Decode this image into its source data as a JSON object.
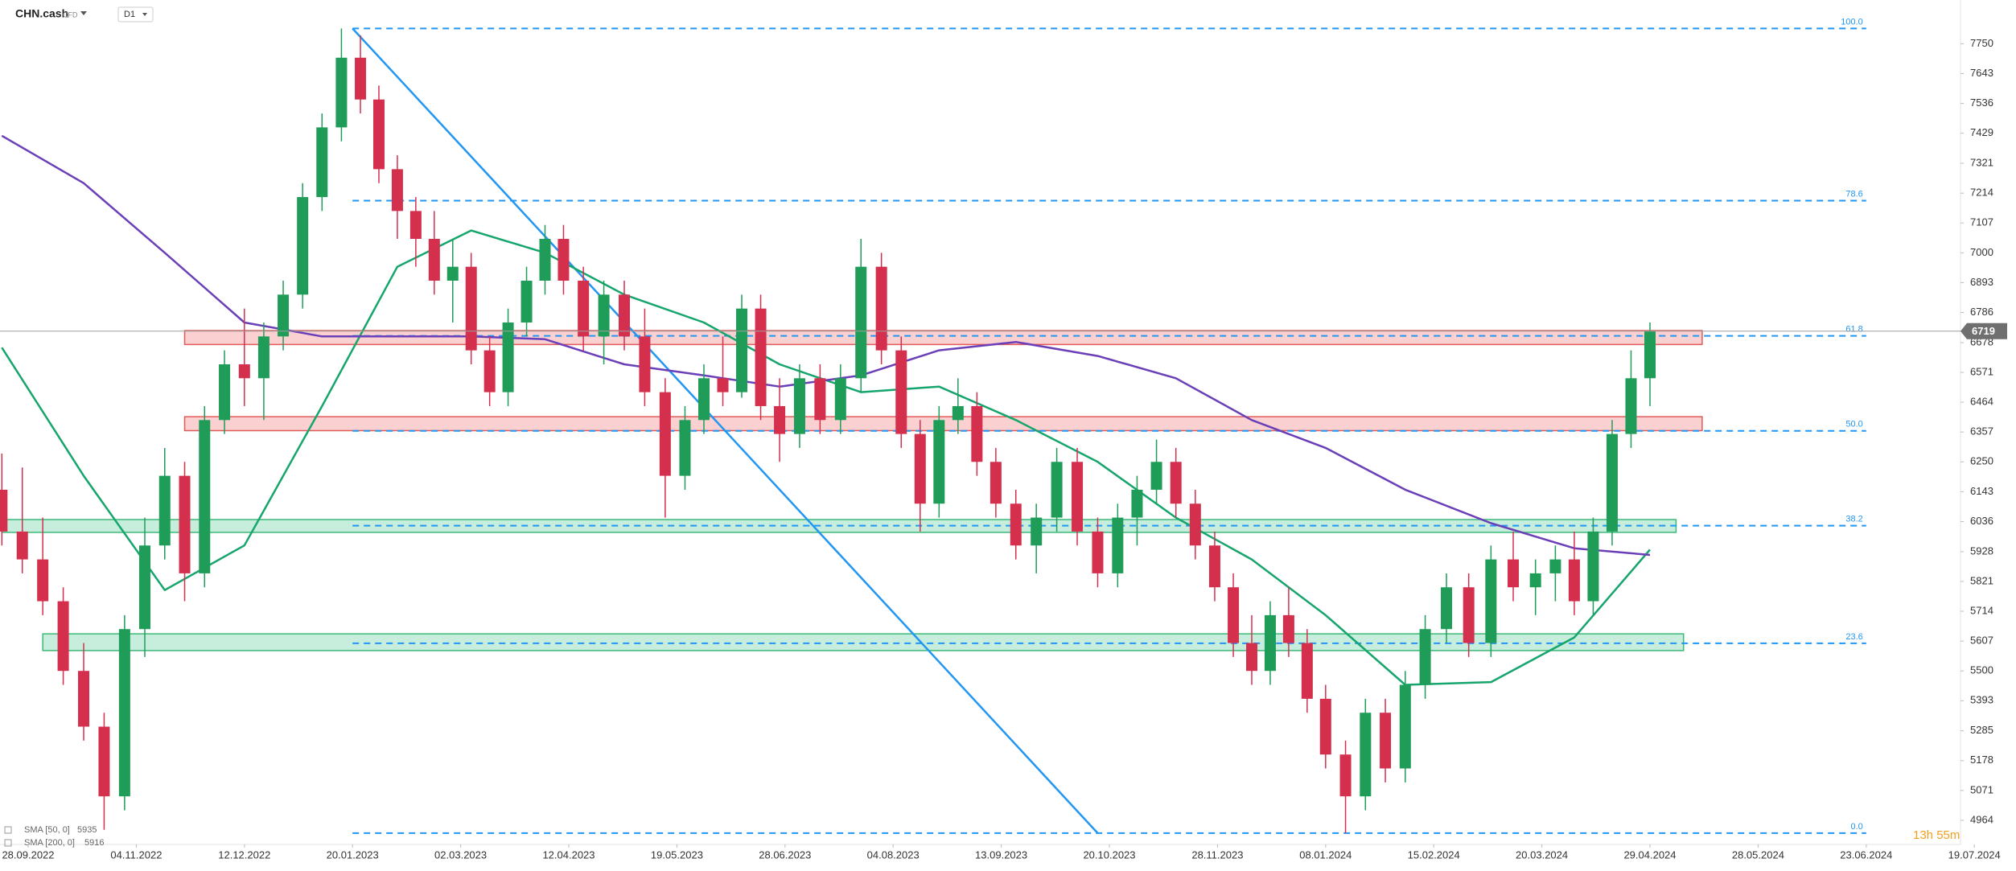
{
  "header": {
    "symbol": "CHN.cash",
    "instrument_type": "CFD",
    "timeframe": "D1"
  },
  "chart_data": {
    "type": "candlestick",
    "xticks": [
      "28.09.2022",
      "04.11.2022",
      "12.12.2022",
      "20.01.2023",
      "02.03.2023",
      "12.04.2023",
      "19.05.2023",
      "28.06.2023",
      "04.08.2023",
      "13.09.2023",
      "20.10.2023",
      "28.11.2023",
      "08.01.2024",
      "15.02.2024",
      "20.03.2024",
      "29.04.2024",
      "28.05.2024",
      "23.06.2024",
      "19.07.2024"
    ],
    "ylim": [
      4886,
      7907
    ],
    "yticks": [
      7750,
      7643,
      7536,
      7429,
      7321,
      7214,
      7107,
      7000,
      6893,
      6786,
      6678,
      6571,
      6464,
      6357,
      6250,
      6143,
      6036,
      5928,
      5821,
      5714,
      5607,
      5500,
      5393,
      5285,
      5178,
      5071,
      4964
    ],
    "grid": false,
    "candles": {
      "up_color": "#1f9d58",
      "down_color": "#d4304e",
      "x": [
        "19.09.2022",
        "26.09.2022",
        "03.10.2022",
        "10.10.2022",
        "17.10.2022",
        "24.10.2022",
        "31.10.2022",
        "07.11.2022",
        "14.11.2022",
        "21.11.2022",
        "28.11.2022",
        "05.12.2022",
        "12.12.2022",
        "19.12.2022",
        "26.12.2022",
        "02.01.2023",
        "09.01.2023",
        "16.01.2023",
        "23.01.2023",
        "30.01.2023",
        "06.02.2023",
        "13.02.2023",
        "20.02.2023",
        "27.02.2023",
        "06.03.2023",
        "13.03.2023",
        "20.03.2023",
        "27.03.2023",
        "03.04.2023",
        "10.04.2023",
        "17.04.2023",
        "24.04.2023",
        "01.05.2023",
        "08.05.2023",
        "15.05.2023",
        "22.05.2023",
        "29.05.2023",
        "05.06.2023",
        "12.06.2023",
        "19.06.2023",
        "26.06.2023",
        "03.07.2023",
        "10.07.2023",
        "17.07.2023",
        "24.07.2023",
        "31.07.2023",
        "07.08.2023",
        "14.08.2023",
        "21.08.2023",
        "28.08.2023",
        "04.09.2023",
        "11.09.2023",
        "18.09.2023",
        "25.09.2023",
        "02.10.2023",
        "09.10.2023",
        "16.10.2023",
        "23.10.2023",
        "30.10.2023",
        "06.11.2023",
        "13.11.2023",
        "20.11.2023",
        "27.11.2023",
        "04.12.2023",
        "11.12.2023",
        "18.12.2023",
        "25.12.2023",
        "01.01.2024",
        "08.01.2024",
        "15.01.2024",
        "22.01.2024",
        "29.01.2024",
        "05.02.2024",
        "12.02.2024",
        "19.02.2024",
        "26.02.2024",
        "04.03.2024",
        "11.03.2024",
        "18.03.2024",
        "25.03.2024",
        "01.04.2024",
        "08.04.2024",
        "15.04.2024",
        "22.04.2024",
        "29.04.2024"
      ],
      "open": [
        6150,
        6000,
        5900,
        5750,
        5500,
        5300,
        5050,
        5650,
        5950,
        6200,
        5850,
        6400,
        6600,
        6550,
        6700,
        6850,
        7200,
        7450,
        7700,
        7550,
        7300,
        7150,
        7050,
        6900,
        6950,
        6650,
        6500,
        6750,
        6900,
        7050,
        6900,
        6700,
        6850,
        6700,
        6500,
        6200,
        6400,
        6550,
        6500,
        6800,
        6450,
        6350,
        6550,
        6400,
        6550,
        6950,
        6650,
        6350,
        6100,
        6400,
        6450,
        6250,
        6100,
        5950,
        6050,
        6250,
        6000,
        5850,
        6050,
        6150,
        6250,
        6100,
        5950,
        5800,
        5600,
        5500,
        5700,
        5600,
        5400,
        5200,
        5050,
        5350,
        5150,
        5450,
        5650,
        5800,
        5600,
        5900,
        5800,
        5850,
        5900,
        5750,
        6000,
        6350,
        6550
      ],
      "high": [
        6280,
        6230,
        6050,
        5800,
        5600,
        5350,
        5700,
        6050,
        6300,
        6250,
        6450,
        6650,
        6800,
        6750,
        6900,
        7250,
        7500,
        7805,
        7780,
        7600,
        7350,
        7200,
        7150,
        7050,
        7000,
        6700,
        6800,
        6950,
        7100,
        7100,
        6950,
        6900,
        6900,
        6800,
        6550,
        6450,
        6600,
        6700,
        6850,
        6850,
        6550,
        6600,
        6600,
        6600,
        7050,
        7000,
        6700,
        6400,
        6450,
        6550,
        6500,
        6300,
        6150,
        6100,
        6300,
        6300,
        6050,
        6100,
        6200,
        6330,
        6300,
        6150,
        6000,
        5850,
        5700,
        5750,
        5800,
        5650,
        5450,
        5250,
        5400,
        5400,
        5500,
        5700,
        5850,
        5850,
        5950,
        6000,
        5900,
        5950,
        6000,
        6050,
        6400,
        6650,
        6750
      ],
      "low": [
        5950,
        5850,
        5700,
        5450,
        5250,
        4930,
        5000,
        5550,
        5900,
        5750,
        5800,
        6350,
        6450,
        6400,
        6650,
        6800,
        7150,
        7400,
        7500,
        7250,
        7050,
        6950,
        6850,
        6750,
        6600,
        6450,
        6450,
        6700,
        6850,
        6850,
        6650,
        6600,
        6650,
        6450,
        6050,
        6150,
        6350,
        6450,
        6480,
        6400,
        6250,
        6300,
        6350,
        6350,
        6500,
        6600,
        6300,
        6000,
        6050,
        6350,
        6200,
        6050,
        5900,
        5850,
        6000,
        5950,
        5800,
        5800,
        5950,
        6100,
        6050,
        5900,
        5750,
        5550,
        5450,
        5450,
        5550,
        5350,
        5150,
        4918,
        5000,
        5100,
        5100,
        5400,
        5600,
        5550,
        5550,
        5750,
        5700,
        5750,
        5700,
        5700,
        5950,
        6300,
        6450
      ],
      "close": [
        6000,
        5900,
        5750,
        5500,
        5300,
        5050,
        5650,
        5950,
        6200,
        5850,
        6400,
        6600,
        6550,
        6700,
        6850,
        7200,
        7450,
        7700,
        7550,
        7300,
        7150,
        7050,
        6900,
        6950,
        6650,
        6500,
        6750,
        6900,
        7050,
        6900,
        6700,
        6850,
        6700,
        6500,
        6200,
        6400,
        6550,
        6500,
        6800,
        6450,
        6350,
        6550,
        6400,
        6550,
        6950,
        6650,
        6350,
        6100,
        6400,
        6450,
        6250,
        6100,
        5950,
        6050,
        6250,
        6000,
        5850,
        6050,
        6150,
        6250,
        6100,
        5950,
        5800,
        5600,
        5500,
        5700,
        5600,
        5400,
        5200,
        5050,
        5350,
        5150,
        5450,
        5650,
        5800,
        5600,
        5900,
        5800,
        5850,
        5900,
        5750,
        6000,
        6350,
        6550,
        6719
      ]
    },
    "sma": [
      {
        "name": "SMA [50, 0]",
        "color": "#16a56c",
        "x": [
          "19.09.2022",
          "17.10.2022",
          "14.11.2022",
          "12.12.2022",
          "09.01.2023",
          "06.02.2023",
          "06.03.2023",
          "03.04.2023",
          "01.05.2023",
          "29.05.2023",
          "26.06.2023",
          "24.07.2023",
          "21.08.2023",
          "18.09.2023",
          "16.10.2023",
          "13.11.2023",
          "11.12.2023",
          "08.01.2024",
          "05.02.2024",
          "04.03.2024",
          "01.04.2024",
          "29.04.2024"
        ],
        "values": [
          6660,
          6200,
          5790,
          5950,
          6450,
          6950,
          7080,
          7000,
          6850,
          6750,
          6600,
          6500,
          6520,
          6400,
          6250,
          6050,
          5900,
          5700,
          5450,
          5460,
          5620,
          5935
        ]
      },
      {
        "name": "SMA [200, 0]",
        "color": "#6a3fb8",
        "x": [
          "19.09.2022",
          "17.10.2022",
          "14.11.2022",
          "12.12.2022",
          "09.01.2023",
          "06.02.2023",
          "06.03.2023",
          "03.04.2023",
          "01.05.2023",
          "29.05.2023",
          "26.06.2023",
          "24.07.2023",
          "21.08.2023",
          "18.09.2023",
          "16.10.2023",
          "13.11.2023",
          "11.12.2023",
          "08.01.2024",
          "05.02.2024",
          "04.03.2024",
          "01.04.2024",
          "29.04.2024"
        ],
        "values": [
          7420,
          7250,
          7000,
          6750,
          6700,
          6700,
          6700,
          6690,
          6600,
          6560,
          6520,
          6560,
          6650,
          6680,
          6630,
          6550,
          6400,
          6300,
          6150,
          6030,
          5940,
          5916
        ]
      }
    ],
    "fib_color": "#2196f3",
    "fib_x": [
      "20.01.2023",
      "23.06.2024"
    ],
    "fib_levels": [
      {
        "label": "100.0",
        "value": 7805
      },
      {
        "label": "78.6",
        "value": 7187
      },
      {
        "label": "61.8",
        "value": 6702
      },
      {
        "label": "50.0",
        "value": 6361
      },
      {
        "label": "38.2",
        "value": 6021
      },
      {
        "label": "23.6",
        "value": 5599
      },
      {
        "label": "0.0",
        "value": 4918
      }
    ],
    "trendline": {
      "color": "#2196f3",
      "x": [
        "20.01.2023",
        "16.10.2023"
      ],
      "values": [
        7805,
        4918
      ]
    },
    "zones": [
      {
        "x": [
          "21.11.2022",
          "13.05.2024"
        ],
        "low": 6671,
        "high": 6721,
        "fill": "rgba(240,120,120,0.35)",
        "stroke": "#e05a5a"
      },
      {
        "x": [
          "21.11.2022",
          "13.05.2024"
        ],
        "low": 6362,
        "high": 6412,
        "fill": "rgba(240,120,120,0.35)",
        "stroke": "#e05a5a"
      },
      {
        "x": [
          "19.09.2022",
          "06.05.2024"
        ],
        "low": 5997,
        "high": 6043,
        "fill": "rgba(70,200,140,0.3)",
        "stroke": "#3cb878"
      },
      {
        "x": [
          "03.10.2022",
          "08.05.2024"
        ],
        "low": 5573,
        "high": 5633,
        "fill": "rgba(70,200,140,0.3)",
        "stroke": "#3cb878"
      }
    ],
    "countdown": "13h 55m"
  }
}
